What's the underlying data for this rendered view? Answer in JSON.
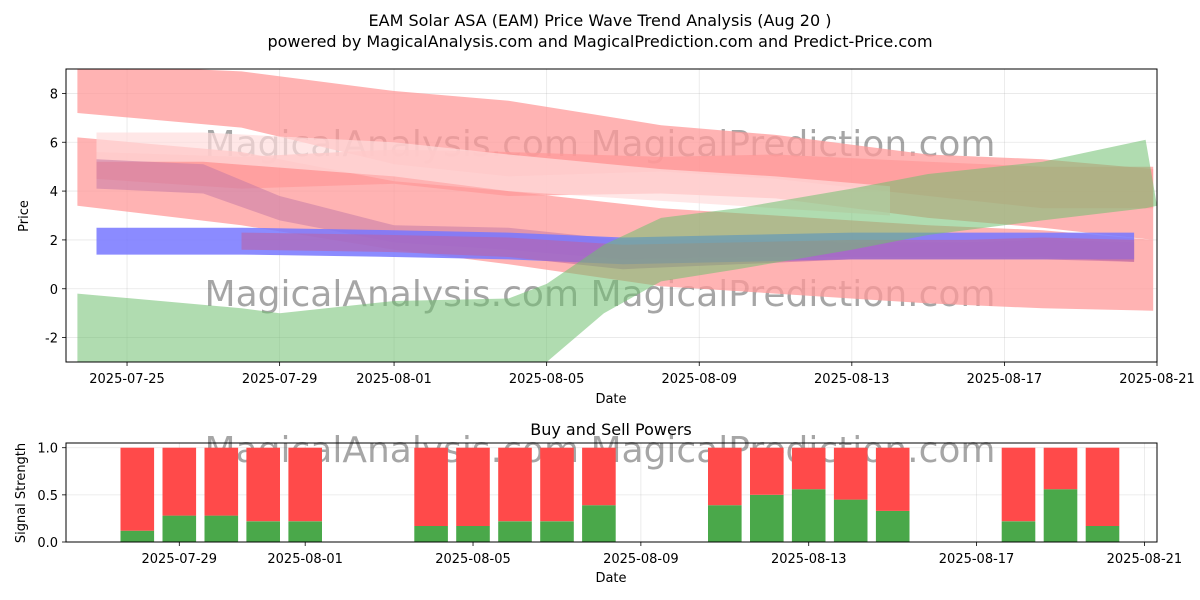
{
  "chart_data": [
    {
      "type": "area",
      "title": "EAM Solar ASA (EAM) Price Wave Trend Analysis (Aug 20 )",
      "subtitle": "powered by MagicalAnalysis.com and MagicalPrediction.com and Predict-Price.com",
      "xlabel": "Date",
      "ylabel": "Price",
      "xlim": [
        "2025-07-23.4",
        "2025-08-21.0"
      ],
      "ylim": [
        -3,
        9
      ],
      "x_ticks": [
        "2025-07-25",
        "2025-07-29",
        "2025-08-01",
        "2025-08-05",
        "2025-08-09",
        "2025-08-13",
        "2025-08-17",
        "2025-08-21"
      ],
      "y_ticks": [
        -2,
        0,
        2,
        4,
        6,
        8
      ],
      "grid": true,
      "watermark": "MagicalAnalysis.com    MagicalPrediction.com",
      "bands": [
        {
          "name": "red-wave-1",
          "color": "#ff9999",
          "opacity": 0.75,
          "x": [
            "2025-07-23.7",
            "2025-07-28",
            "2025-08-01",
            "2025-08-04",
            "2025-08-08",
            "2025-08-11",
            "2025-08-15",
            "2025-08-18",
            "2025-08-20.9"
          ],
          "upper": [
            9.2,
            8.9,
            8.1,
            7.7,
            6.7,
            6.3,
            5.5,
            5.3,
            4.9
          ],
          "lower": [
            7.2,
            6.6,
            5.1,
            4.6,
            4.8,
            4.5,
            3.8,
            3.3,
            3.3
          ]
        },
        {
          "name": "red-wave-2",
          "color": "#ff9999",
          "opacity": 0.75,
          "x": [
            "2025-07-23.7",
            "2025-07-28",
            "2025-08-01",
            "2025-08-04",
            "2025-08-08",
            "2025-08-11",
            "2025-08-15",
            "2025-08-18",
            "2025-08-20.9"
          ],
          "upper": [
            6.2,
            5.6,
            4.4,
            4.0,
            3.3,
            3.0,
            2.6,
            2.4,
            2.0
          ],
          "lower": [
            3.4,
            2.6,
            1.6,
            1.0,
            0.1,
            -0.2,
            -0.6,
            -0.8,
            -0.9
          ]
        },
        {
          "name": "red-wave-3",
          "color": "#ff9999",
          "opacity": 0.75,
          "x": [
            "2025-07-24.2",
            "2025-07-28",
            "2025-08-01",
            "2025-08-04",
            "2025-08-08",
            "2025-08-11",
            "2025-08-15",
            "2025-08-18",
            "2025-08-20.9"
          ],
          "upper": [
            5.6,
            5.4,
            5.7,
            5.6,
            5.4,
            5.5,
            5.2,
            5.0,
            5.0
          ],
          "lower": [
            4.5,
            4.1,
            4.3,
            3.8,
            3.9,
            3.7,
            2.9,
            2.5,
            2.0
          ]
        },
        {
          "name": "light-wave",
          "color": "#ffdddd",
          "opacity": 0.7,
          "x": [
            "2025-07-24.2",
            "2025-07-27",
            "2025-08-01",
            "2025-08-04",
            "2025-08-08",
            "2025-08-11",
            "2025-08-14"
          ],
          "upper": [
            6.4,
            6.4,
            6.0,
            5.5,
            4.9,
            4.6,
            4.2
          ],
          "lower": [
            5.2,
            5.2,
            4.6,
            4.0,
            3.6,
            3.3,
            3.0
          ]
        },
        {
          "name": "purple-wave-1",
          "color": "#c77aa6",
          "opacity": 0.55,
          "x": [
            "2025-07-24.2",
            "2025-07-27",
            "2025-07-29",
            "2025-08-01",
            "2025-08-04",
            "2025-08-07",
            "2025-08-10",
            "2025-08-13",
            "2025-08-16",
            "2025-08-18",
            "2025-08-20.4"
          ],
          "upper": [
            5.3,
            5.1,
            3.8,
            2.6,
            2.5,
            2.0,
            2.0,
            1.9,
            1.9,
            2.0,
            1.9
          ],
          "lower": [
            4.1,
            3.9,
            2.8,
            1.9,
            1.6,
            1.2,
            1.3,
            1.3,
            1.3,
            1.3,
            1.1
          ]
        },
        {
          "name": "blue-wave",
          "color": "#7777ff",
          "opacity": 0.85,
          "x": [
            "2025-07-24.2",
            "2025-07-28",
            "2025-08-01",
            "2025-08-04",
            "2025-08-07",
            "2025-08-10",
            "2025-08-13",
            "2025-08-16",
            "2025-08-18",
            "2025-08-20.4"
          ],
          "upper": [
            2.5,
            2.5,
            2.4,
            2.3,
            2.1,
            2.2,
            2.3,
            2.3,
            2.3,
            2.3
          ],
          "lower": [
            1.4,
            1.4,
            1.3,
            1.2,
            1.0,
            1.1,
            1.2,
            1.2,
            1.2,
            1.2
          ]
        },
        {
          "name": "purple-wave-2",
          "color": "#c060a0",
          "opacity": 0.55,
          "x": [
            "2025-07-28",
            "2025-08-01",
            "2025-08-04",
            "2025-08-07",
            "2025-08-10",
            "2025-08-13",
            "2025-08-16",
            "2025-08-18",
            "2025-08-20.4"
          ],
          "upper": [
            2.3,
            2.2,
            2.1,
            1.8,
            1.9,
            2.0,
            2.0,
            2.1,
            2.0
          ],
          "lower": [
            1.6,
            1.5,
            1.3,
            0.8,
            1.0,
            1.2,
            1.2,
            1.2,
            1.1
          ]
        },
        {
          "name": "green-wave",
          "color": "#6fbf6f",
          "opacity": 0.55,
          "x": [
            "2025-07-23.7",
            "2025-07-28",
            "2025-07-29",
            "2025-08-01",
            "2025-08-04",
            "2025-08-05",
            "2025-08-06.5",
            "2025-08-08",
            "2025-08-10",
            "2025-08-13",
            "2025-08-15",
            "2025-08-18",
            "2025-08-20.7",
            "2025-08-21.0"
          ],
          "upper": [
            -0.2,
            -0.8,
            -1.0,
            -0.5,
            -0.4,
            0.2,
            1.8,
            2.9,
            3.3,
            4.1,
            4.7,
            5.2,
            6.1,
            3.4
          ],
          "lower": [
            -3.0,
            -3.0,
            -3.0,
            -3.0,
            -3.0,
            -3.0,
            -1.0,
            0.3,
            0.8,
            1.6,
            2.2,
            2.8,
            3.3,
            3.4
          ]
        }
      ]
    },
    {
      "type": "bar",
      "title": "Buy and Sell Powers",
      "xlabel": "Date",
      "ylabel": "Signal Strength",
      "ylim": [
        0,
        1.05
      ],
      "xlim": [
        "2025-07-26.3",
        "2025-08-21.3"
      ],
      "x_ticks": [
        "2025-07-29",
        "2025-08-01",
        "2025-08-05",
        "2025-08-09",
        "2025-08-13",
        "2025-08-17",
        "2025-08-21"
      ],
      "y_ticks": [
        0.0,
        0.5,
        1.0
      ],
      "grid": true,
      "buy_color": "#4aa84a",
      "sell_color": "#ff4a4a",
      "dates": [
        "2025-07-28",
        "2025-07-29",
        "2025-07-30",
        "2025-07-31",
        "2025-08-01",
        "2025-08-04",
        "2025-08-05",
        "2025-08-06",
        "2025-08-07",
        "2025-08-08",
        "2025-08-11",
        "2025-08-12",
        "2025-08-13",
        "2025-08-14",
        "2025-08-15",
        "2025-08-18",
        "2025-08-19",
        "2025-08-20"
      ],
      "buy": [
        0.12,
        0.28,
        0.28,
        0.22,
        0.22,
        0.17,
        0.17,
        0.22,
        0.22,
        0.39,
        0.39,
        0.5,
        0.56,
        0.45,
        0.33,
        0.22,
        0.56,
        0.17
      ],
      "sell": [
        0.88,
        0.72,
        0.72,
        0.78,
        0.78,
        0.83,
        0.83,
        0.78,
        0.78,
        0.61,
        0.61,
        0.5,
        0.44,
        0.55,
        0.67,
        0.78,
        0.44,
        0.83
      ]
    }
  ]
}
